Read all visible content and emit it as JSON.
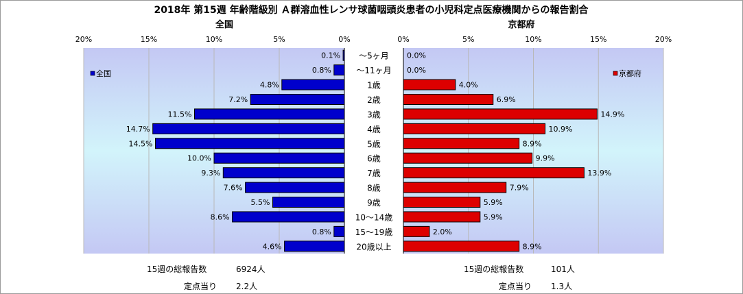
{
  "chart_data": {
    "type": "bar",
    "title": "2018年 第15週 年齢階級別 Ａ群溶血性レンサ球菌咽頭炎患者の小児科定点医療機関からの報告割合",
    "categories": [
      "～5ヶ月",
      "～11ヶ月",
      "1歳",
      "2歳",
      "3歳",
      "4歳",
      "5歳",
      "6歳",
      "7歳",
      "8歳",
      "9歳",
      "10～14歳",
      "15～19歳",
      "20歳以上"
    ],
    "series": [
      {
        "name": "全国",
        "color": "#0000cc",
        "values": [
          0.1,
          0.8,
          4.8,
          7.2,
          11.5,
          14.7,
          14.5,
          10.0,
          9.3,
          7.6,
          5.5,
          8.6,
          0.8,
          4.6
        ],
        "labels": [
          "0.1%",
          "0.8%",
          "4.8%",
          "7.2%",
          "11.5%",
          "14.7%",
          "14.5%",
          "10.0%",
          "9.3%",
          "7.6%",
          "5.5%",
          "8.6%",
          "0.8%",
          "4.6%"
        ]
      },
      {
        "name": "京都府",
        "color": "#dd0000",
        "values": [
          0.0,
          0.0,
          4.0,
          6.9,
          14.9,
          10.9,
          8.9,
          9.9,
          13.9,
          7.9,
          5.9,
          5.9,
          2.0,
          8.9
        ],
        "labels": [
          "0.0%",
          "0.0%",
          "4.0%",
          "6.9%",
          "14.9%",
          "10.9%",
          "8.9%",
          "9.9%",
          "13.9%",
          "7.9%",
          "5.9%",
          "5.9%",
          "2.0%",
          "8.9%"
        ]
      }
    ],
    "panels": [
      {
        "heading": "全国",
        "legend": "全国",
        "ticks": [
          "20%",
          "15%",
          "10%",
          "5%",
          "0%"
        ],
        "xlim": [
          0,
          20
        ],
        "direction": "leftward"
      },
      {
        "heading": "京都府",
        "legend": "京都府",
        "ticks": [
          "0%",
          "5%",
          "10%",
          "15%",
          "20%"
        ],
        "xlim": [
          0,
          20
        ],
        "direction": "rightward"
      }
    ],
    "grid": true
  },
  "footer": {
    "national": {
      "total_label": "15週の総報告数",
      "total_value": "6924人",
      "per_site_label": "定点当り",
      "per_site_value": "2.2人"
    },
    "kyoto": {
      "total_label": "15週の総報告数",
      "total_value": "101人",
      "per_site_label": "定点当り",
      "per_site_value": "1.3人"
    }
  }
}
